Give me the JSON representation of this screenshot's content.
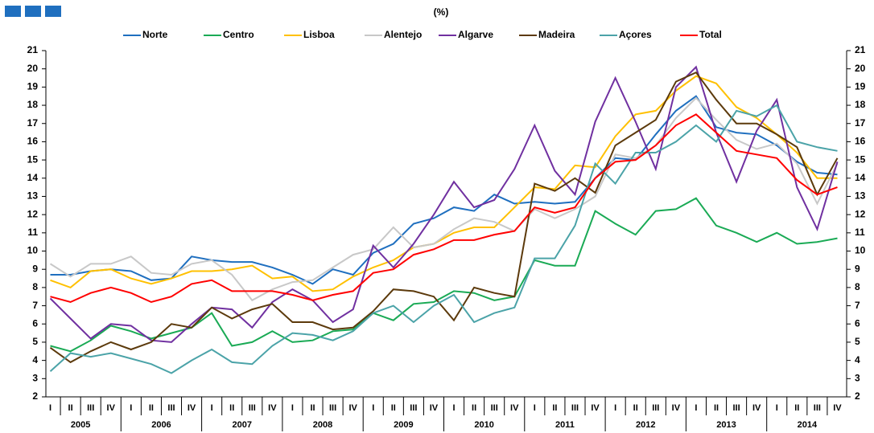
{
  "chart_data": {
    "type": "line",
    "subtitle": "(%)",
    "categories": [
      "I",
      "II",
      "III",
      "IV",
      "I",
      "II",
      "III",
      "IV",
      "I",
      "II",
      "III",
      "IV",
      "I",
      "II",
      "III",
      "IV",
      "I",
      "II",
      "III",
      "IV",
      "I",
      "II",
      "III",
      "IV",
      "I",
      "II",
      "III",
      "IV",
      "I",
      "II",
      "III",
      "IV",
      "I",
      "II",
      "III",
      "IV",
      "I",
      "II",
      "III",
      "IV"
    ],
    "years": [
      "2005",
      "2006",
      "2007",
      "2008",
      "2009",
      "2010",
      "2011",
      "2012",
      "2013",
      "2014"
    ],
    "ylim": [
      2,
      21
    ],
    "yticks": [
      2,
      3,
      4,
      5,
      6,
      7,
      8,
      9,
      10,
      11,
      12,
      13,
      14,
      15,
      16,
      17,
      18,
      19,
      20,
      21
    ],
    "series": [
      {
        "name": "Norte",
        "color": "#1f6fbf",
        "values": [
          8.7,
          8.7,
          8.9,
          9.0,
          8.9,
          8.4,
          8.5,
          9.7,
          9.5,
          9.4,
          9.4,
          9.1,
          8.7,
          8.2,
          9.0,
          8.7,
          9.9,
          10.4,
          11.5,
          11.8,
          12.4,
          12.2,
          13.1,
          12.6,
          12.7,
          12.6,
          12.7,
          14.0,
          15.1,
          15.0,
          16.4,
          17.7,
          18.5,
          16.8,
          16.5,
          16.4,
          15.8,
          14.9,
          14.3,
          14.2
        ]
      },
      {
        "name": "Centro",
        "color": "#1aaa55",
        "values": [
          4.8,
          4.5,
          5.1,
          5.9,
          5.6,
          5.2,
          5.5,
          5.8,
          6.6,
          4.8,
          5.0,
          5.6,
          5.0,
          5.1,
          5.6,
          5.7,
          6.6,
          6.2,
          7.1,
          7.2,
          7.8,
          7.7,
          7.3,
          7.5,
          9.5,
          9.2,
          9.2,
          12.2,
          11.5,
          10.9,
          12.2,
          12.3,
          12.9,
          11.4,
          11.0,
          10.5,
          11.0,
          10.4,
          10.5,
          10.7
        ]
      },
      {
        "name": "Lisboa",
        "color": "#ffc000",
        "values": [
          8.4,
          8.0,
          8.9,
          9.0,
          8.5,
          8.2,
          8.5,
          8.9,
          8.9,
          9.0,
          9.2,
          8.5,
          8.6,
          7.8,
          7.9,
          8.6,
          9.1,
          9.5,
          10.2,
          10.4,
          11.0,
          11.3,
          11.3,
          12.4,
          13.5,
          13.4,
          14.7,
          14.6,
          16.3,
          17.5,
          17.7,
          18.8,
          19.6,
          19.2,
          17.9,
          17.3,
          16.4,
          15.4,
          14.0,
          14.0
        ]
      },
      {
        "name": "Alentejo",
        "color": "#c8c8c8",
        "values": [
          9.3,
          8.6,
          9.3,
          9.3,
          9.7,
          8.8,
          8.7,
          9.3,
          9.5,
          8.7,
          7.3,
          7.9,
          8.3,
          8.4,
          9.1,
          9.8,
          10.1,
          11.3,
          10.2,
          10.4,
          11.2,
          11.8,
          11.6,
          11.1,
          12.3,
          11.8,
          12.3,
          13.0,
          15.3,
          15.1,
          15.8,
          17.3,
          18.4,
          17.2,
          16.1,
          15.6,
          15.9,
          14.8,
          12.6,
          14.8
        ]
      },
      {
        "name": "Algarve",
        "color": "#7030a0",
        "values": [
          7.4,
          6.3,
          5.2,
          6.0,
          5.9,
          5.1,
          5.0,
          6.0,
          6.9,
          6.8,
          5.8,
          7.2,
          7.9,
          7.3,
          6.1,
          6.8,
          10.3,
          9.1,
          10.4,
          12.0,
          13.8,
          12.4,
          12.8,
          14.5,
          16.9,
          14.4,
          13.1,
          17.1,
          19.5,
          17.1,
          14.5,
          19.0,
          20.1,
          16.5,
          13.8,
          16.6,
          18.3,
          13.5,
          11.2,
          14.9
        ]
      },
      {
        "name": "Madeira",
        "color": "#5c3a0c",
        "values": [
          4.7,
          3.9,
          4.5,
          5.0,
          4.6,
          5.0,
          6.0,
          5.8,
          6.9,
          6.3,
          6.8,
          7.1,
          6.1,
          6.1,
          5.7,
          5.8,
          6.7,
          7.9,
          7.8,
          7.5,
          6.2,
          8.0,
          7.7,
          7.5,
          13.7,
          13.3,
          14.0,
          13.2,
          15.8,
          16.5,
          17.2,
          19.3,
          19.8,
          18.3,
          17.0,
          17.0,
          16.4,
          15.7,
          13.1,
          15.1
        ]
      },
      {
        "name": "Açores",
        "color": "#4ba3a8",
        "values": [
          3.4,
          4.4,
          4.2,
          4.4,
          4.1,
          3.8,
          3.3,
          4.0,
          4.6,
          3.9,
          3.8,
          4.8,
          5.5,
          5.4,
          5.1,
          5.6,
          6.6,
          7.0,
          6.1,
          7.0,
          7.6,
          6.1,
          6.6,
          6.9,
          9.6,
          9.6,
          11.4,
          14.8,
          13.7,
          15.4,
          15.4,
          16.0,
          16.9,
          16.0,
          17.7,
          17.4,
          18.0,
          16.0,
          15.7,
          15.5
        ]
      },
      {
        "name": "Total",
        "color": "#ff0000",
        "values": [
          7.5,
          7.2,
          7.7,
          8.0,
          7.7,
          7.2,
          7.5,
          8.2,
          8.4,
          7.8,
          7.8,
          7.8,
          7.6,
          7.3,
          7.6,
          7.8,
          8.8,
          9.0,
          9.8,
          10.1,
          10.6,
          10.6,
          10.9,
          11.1,
          12.4,
          12.1,
          12.4,
          14.0,
          14.9,
          15.0,
          15.8,
          16.9,
          17.5,
          16.5,
          15.5,
          15.3,
          15.1,
          13.9,
          13.1,
          13.5
        ]
      }
    ]
  }
}
